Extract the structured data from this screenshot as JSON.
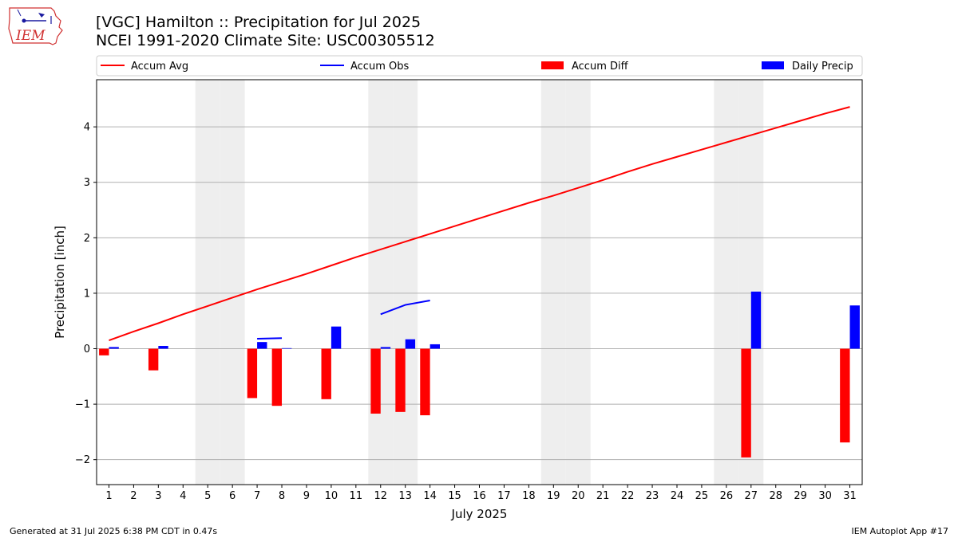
{
  "header": {
    "title": "[VGC] Hamilton :: Precipitation for Jul 2025",
    "subtitle": "NCEI 1991-2020 Climate Site: USC00305512"
  },
  "logo": {
    "text": "IEM"
  },
  "footer": {
    "generated": "Generated at 31 Jul 2025 6:38 PM CDT in 0.47s",
    "app": "IEM Autoplot App #17"
  },
  "chart_data": {
    "type": "bar",
    "xlabel": "July 2025",
    "ylabel": "Precipitation [inch]",
    "xlim": [
      0.5,
      31.5
    ],
    "ylim": [
      -2.45,
      4.85
    ],
    "yticks": [
      -2,
      -1,
      0,
      1,
      2,
      3,
      4
    ],
    "ytick_labels": [
      "−2",
      "−1",
      "0",
      "1",
      "2",
      "3",
      "4"
    ],
    "grid": "horizontal",
    "legend_placement": "top",
    "weekend_days": [
      5,
      6,
      12,
      13,
      19,
      20,
      26,
      27
    ],
    "colors": {
      "accum_avg": "#ff0000",
      "accum_obs": "#0000ff",
      "accum_diff": "#ff0000",
      "daily_precip": "#0000ff",
      "weekend_shade": "#eeeeee",
      "grid": "#b0b0b0"
    },
    "legend": [
      {
        "name": "Accum Avg",
        "kind": "line",
        "color": "#ff0000"
      },
      {
        "name": "Accum Obs",
        "kind": "line",
        "color": "#0000ff"
      },
      {
        "name": "Accum Diff",
        "kind": "bar",
        "color": "#ff0000"
      },
      {
        "name": "Daily Precip",
        "kind": "bar",
        "color": "#0000ff"
      }
    ],
    "days": [
      1,
      2,
      3,
      4,
      5,
      6,
      7,
      8,
      9,
      10,
      11,
      12,
      13,
      14,
      15,
      16,
      17,
      18,
      19,
      20,
      21,
      22,
      23,
      24,
      25,
      26,
      27,
      28,
      29,
      30,
      31
    ],
    "series": [
      {
        "name": "Accum Avg",
        "type": "line",
        "values": [
          0.15,
          0.31,
          0.46,
          0.62,
          0.77,
          0.92,
          1.07,
          1.21,
          1.35,
          1.5,
          1.65,
          1.79,
          1.93,
          2.07,
          2.21,
          2.35,
          2.49,
          2.63,
          2.76,
          2.9,
          3.04,
          3.19,
          3.33,
          3.46,
          3.59,
          3.72,
          3.85,
          3.98,
          4.11,
          4.24,
          4.36
        ]
      },
      {
        "name": "Accum Obs",
        "type": "line",
        "values": [
          null,
          null,
          null,
          null,
          null,
          null,
          0.18,
          0.19,
          null,
          null,
          null,
          0.62,
          0.79,
          0.87,
          null,
          null,
          null,
          null,
          null,
          null,
          null,
          null,
          null,
          null,
          null,
          null,
          null,
          null,
          null,
          null,
          null
        ]
      },
      {
        "name": "Accum Diff",
        "type": "bar",
        "values": [
          -0.12,
          0,
          -0.39,
          0,
          0,
          0,
          -0.89,
          -1.03,
          0,
          -0.91,
          0,
          -1.17,
          -1.14,
          -1.2,
          0,
          0,
          0,
          0,
          0,
          0,
          0,
          0,
          0,
          0,
          0,
          0,
          -1.96,
          0,
          0,
          0,
          -1.69
        ]
      },
      {
        "name": "Daily Precip",
        "type": "bar",
        "values": [
          0.03,
          0,
          0.05,
          0,
          0,
          0,
          0.12,
          0.01,
          0,
          0.4,
          0,
          0.03,
          0.17,
          0.08,
          0,
          0,
          0,
          0,
          0,
          0,
          0,
          0,
          0,
          0,
          0,
          0,
          1.03,
          0,
          0,
          0,
          0.78
        ]
      }
    ]
  }
}
